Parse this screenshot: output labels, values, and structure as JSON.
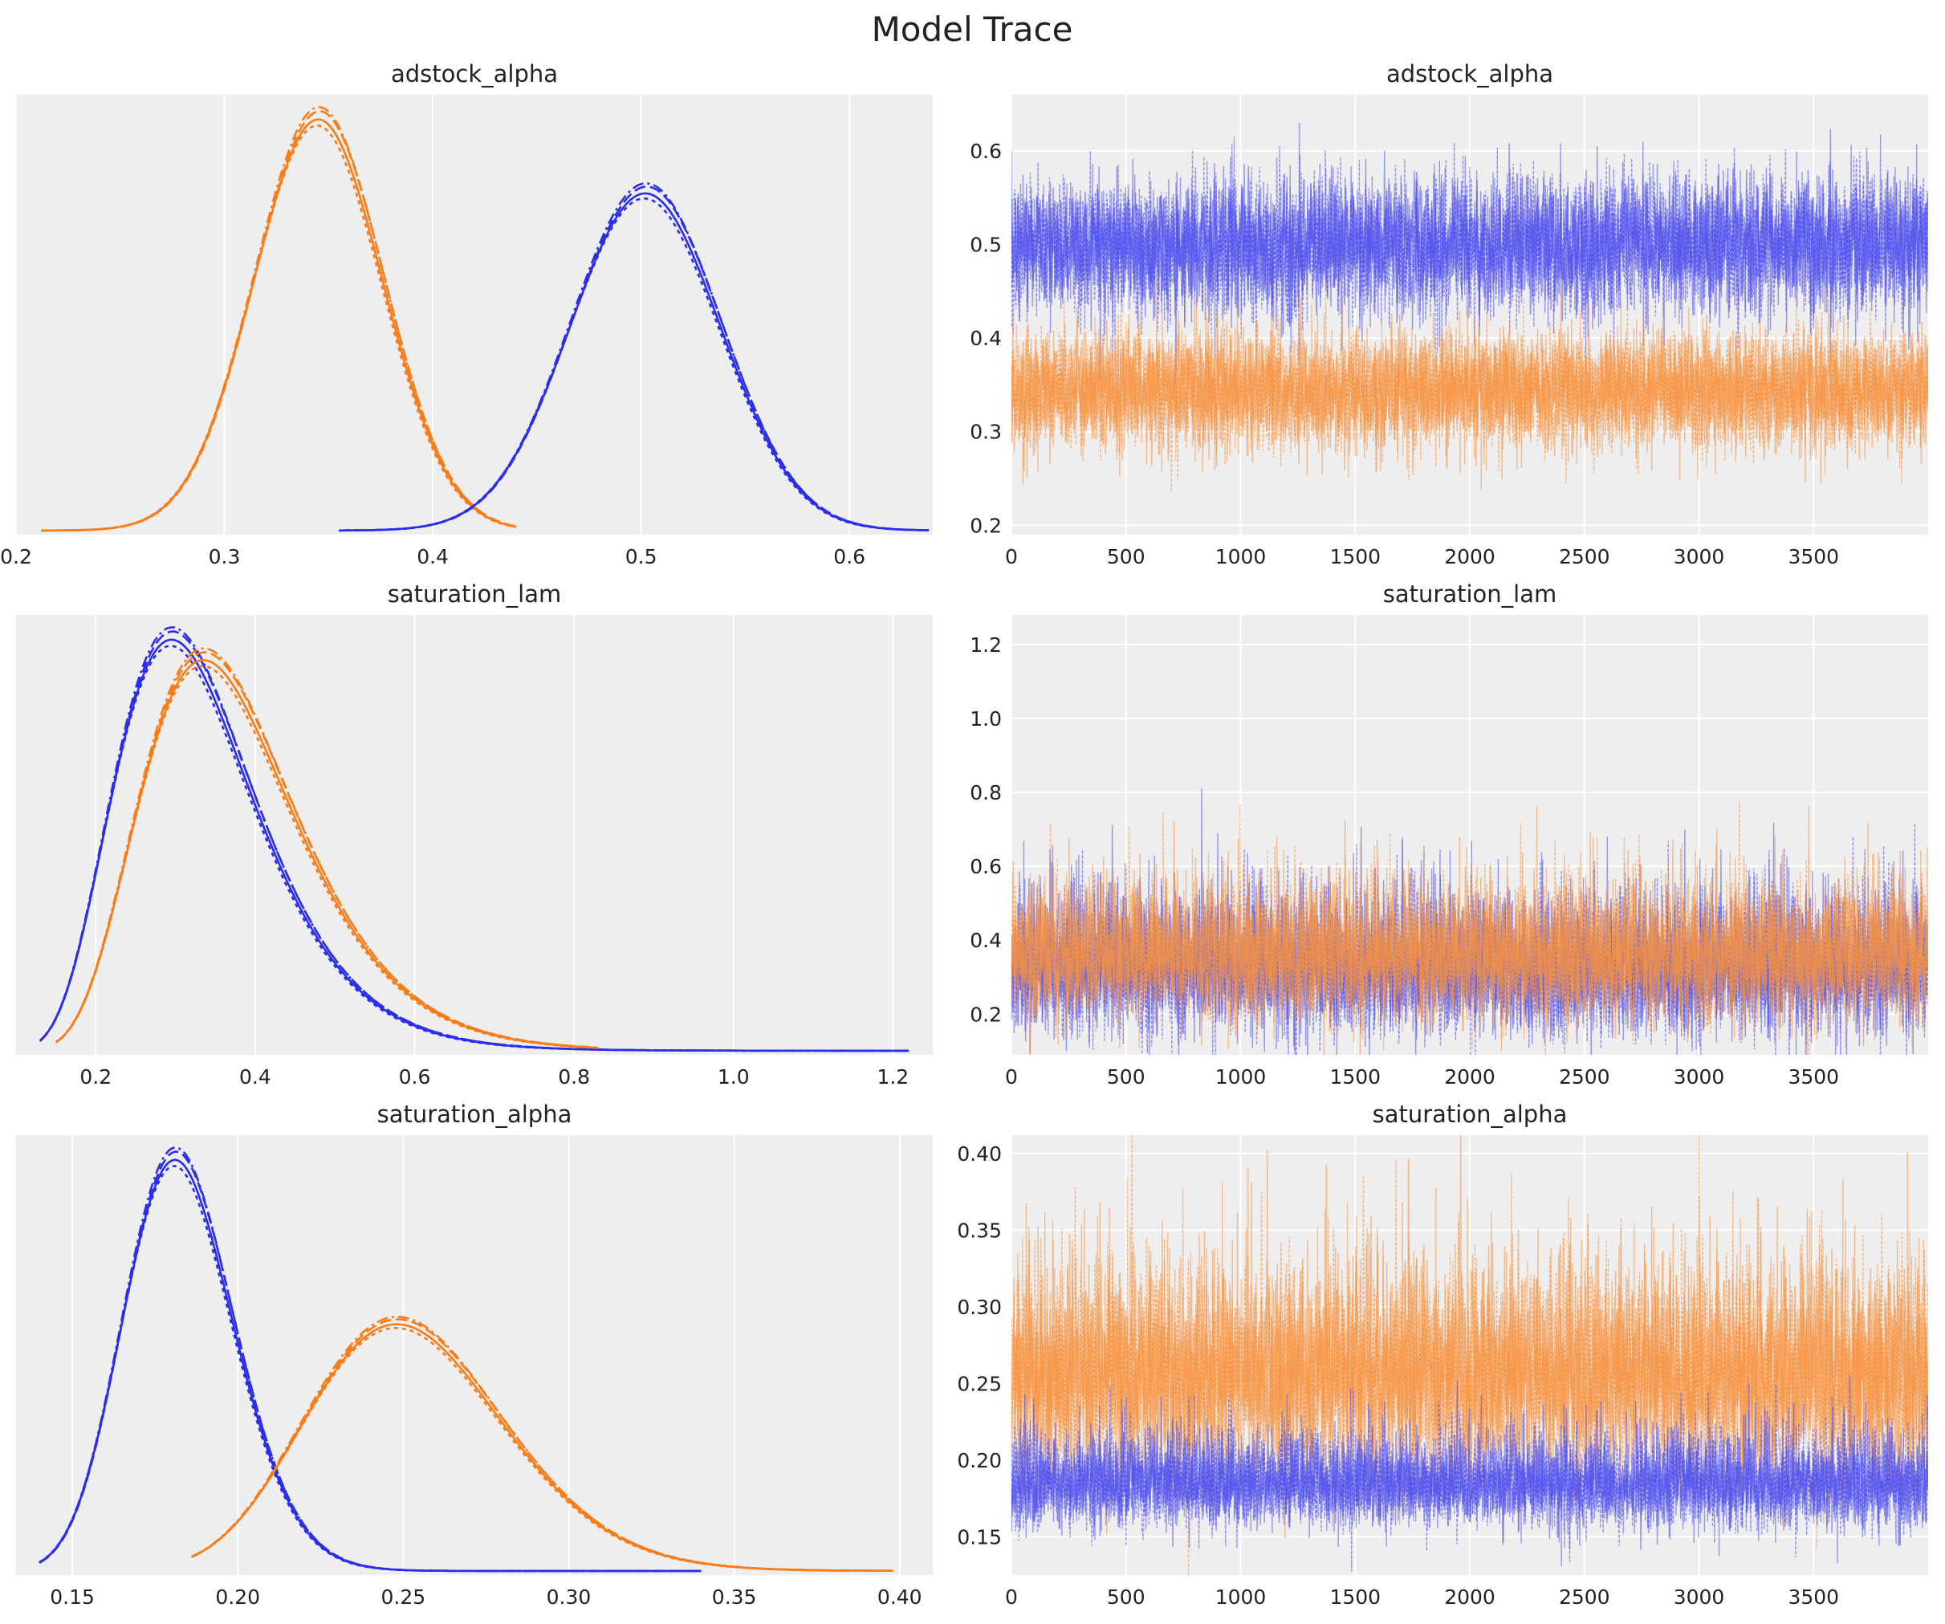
{
  "title": "Model Trace",
  "colors": {
    "blue": "#2a2eec",
    "orange": "#fa7c17",
    "trace_blue": "#4c4fee",
    "trace_orange": "#f8913e",
    "panel_bg": "#eeeeee",
    "grid": "#ffffff"
  },
  "chart_data": [
    {
      "id": "adstock_alpha_kde",
      "type": "line",
      "title": "adstock_alpha",
      "xlim": [
        0.2,
        0.64
      ],
      "xticks": [
        0.2,
        0.3,
        0.4,
        0.5,
        0.6
      ],
      "xtick_labels": [
        "0.2",
        "0.3",
        "0.4",
        "0.5",
        "0.6"
      ],
      "ylim": [
        0,
        1.07
      ],
      "grid": true,
      "series": [
        {
          "color": "orange",
          "dist": {
            "shape": "gauss",
            "mu": 0.345,
            "sd": 0.031,
            "x0": 0.212,
            "x1": 0.44,
            "amp": 1.0
          },
          "chains": 4
        },
        {
          "color": "blue",
          "dist": {
            "shape": "gauss",
            "mu": 0.502,
            "sd": 0.036,
            "x0": 0.355,
            "x1": 0.638,
            "amp": 0.82
          },
          "chains": 4
        }
      ]
    },
    {
      "id": "adstock_alpha_trace",
      "type": "line",
      "title": "adstock_alpha",
      "xlim": [
        0,
        4000
      ],
      "ylim": [
        0.19,
        0.66
      ],
      "xticks": [
        0,
        500,
        1000,
        1500,
        2000,
        2500,
        3000,
        3500
      ],
      "xtick_labels": [
        "0",
        "500",
        "1000",
        "1500",
        "2000",
        "2500",
        "3000",
        "3500"
      ],
      "yticks": [
        0.2,
        0.3,
        0.4,
        0.5,
        0.6
      ],
      "ytick_labels": [
        "0.2",
        "0.3",
        "0.4",
        "0.5",
        "0.6"
      ],
      "grid": true,
      "draws": 4000,
      "series": [
        {
          "color": "blue",
          "mean": 0.5,
          "sd": 0.036,
          "chains": 4,
          "skew": 0
        },
        {
          "color": "orange",
          "mean": 0.345,
          "sd": 0.031,
          "chains": 4,
          "skew": 0
        }
      ]
    },
    {
      "id": "saturation_lam_kde",
      "type": "line",
      "title": "saturation_lam",
      "xlim": [
        0.1,
        1.25
      ],
      "xticks": [
        0.2,
        0.4,
        0.6,
        0.8,
        1.0,
        1.2
      ],
      "xtick_labels": [
        "0.2",
        "0.4",
        "0.6",
        "0.8",
        "1.0",
        "1.2"
      ],
      "ylim": [
        0,
        1.07
      ],
      "grid": true,
      "series": [
        {
          "color": "blue",
          "dist": {
            "shape": "lognorm",
            "mode": 0.295,
            "s": 0.3,
            "x0": 0.13,
            "x1": 1.22,
            "amp": 1.0
          },
          "chains": 4
        },
        {
          "color": "orange",
          "dist": {
            "shape": "lognorm",
            "mode": 0.335,
            "s": 0.29,
            "x0": 0.15,
            "x1": 0.83,
            "amp": 0.95
          },
          "chains": 4
        }
      ]
    },
    {
      "id": "saturation_lam_trace",
      "type": "line",
      "title": "saturation_lam",
      "xlim": [
        0,
        4000
      ],
      "ylim": [
        0.09,
        1.28
      ],
      "xticks": [
        0,
        500,
        1000,
        1500,
        2000,
        2500,
        3000,
        3500
      ],
      "xtick_labels": [
        "0",
        "500",
        "1000",
        "1500",
        "2000",
        "2500",
        "3000",
        "3500"
      ],
      "yticks": [
        0.2,
        0.4,
        0.6,
        0.8,
        1.0,
        1.2
      ],
      "ytick_labels": [
        "0.2",
        "0.4",
        "0.6",
        "0.8",
        "1.0",
        "1.2"
      ],
      "grid": true,
      "draws": 4000,
      "series": [
        {
          "color": "blue",
          "mean": 0.33,
          "sd": 0.085,
          "chains": 4,
          "skew": 1
        },
        {
          "color": "orange",
          "mean": 0.36,
          "sd": 0.085,
          "chains": 4,
          "skew": 1
        }
      ]
    },
    {
      "id": "saturation_alpha_kde",
      "type": "line",
      "title": "saturation_alpha",
      "xlim": [
        0.133,
        0.41
      ],
      "xticks": [
        0.15,
        0.2,
        0.25,
        0.3,
        0.35,
        0.4
      ],
      "xtick_labels": [
        "0.15",
        "0.20",
        "0.25",
        "0.30",
        "0.35",
        "0.40"
      ],
      "ylim": [
        0,
        1.07
      ],
      "grid": true,
      "series": [
        {
          "color": "blue",
          "dist": {
            "shape": "lognorm",
            "mode": 0.181,
            "s": 0.092,
            "x0": 0.14,
            "x1": 0.34,
            "amp": 1.0
          },
          "chains": 4
        },
        {
          "color": "orange",
          "dist": {
            "shape": "lognorm",
            "mode": 0.248,
            "s": 0.12,
            "x0": 0.186,
            "x1": 0.398,
            "amp": 0.6
          },
          "chains": 4
        }
      ]
    },
    {
      "id": "saturation_alpha_trace",
      "type": "line",
      "title": "saturation_alpha",
      "xlim": [
        0,
        4000
      ],
      "ylim": [
        0.125,
        0.412
      ],
      "xticks": [
        0,
        500,
        1000,
        1500,
        2000,
        2500,
        3000,
        3500
      ],
      "xtick_labels": [
        "0",
        "500",
        "1000",
        "1500",
        "2000",
        "2500",
        "3000",
        "3500"
      ],
      "yticks": [
        0.15,
        0.2,
        0.25,
        0.3,
        0.35,
        0.4
      ],
      "ytick_labels": [
        "0.15",
        "0.20",
        "0.25",
        "0.30",
        "0.35",
        "0.40"
      ],
      "grid": true,
      "draws": 4000,
      "series": [
        {
          "color": "orange",
          "mean": 0.255,
          "sd": 0.032,
          "chains": 4,
          "skew": 1
        },
        {
          "color": "blue",
          "mean": 0.185,
          "sd": 0.014,
          "chains": 4,
          "skew": 1
        }
      ]
    }
  ]
}
